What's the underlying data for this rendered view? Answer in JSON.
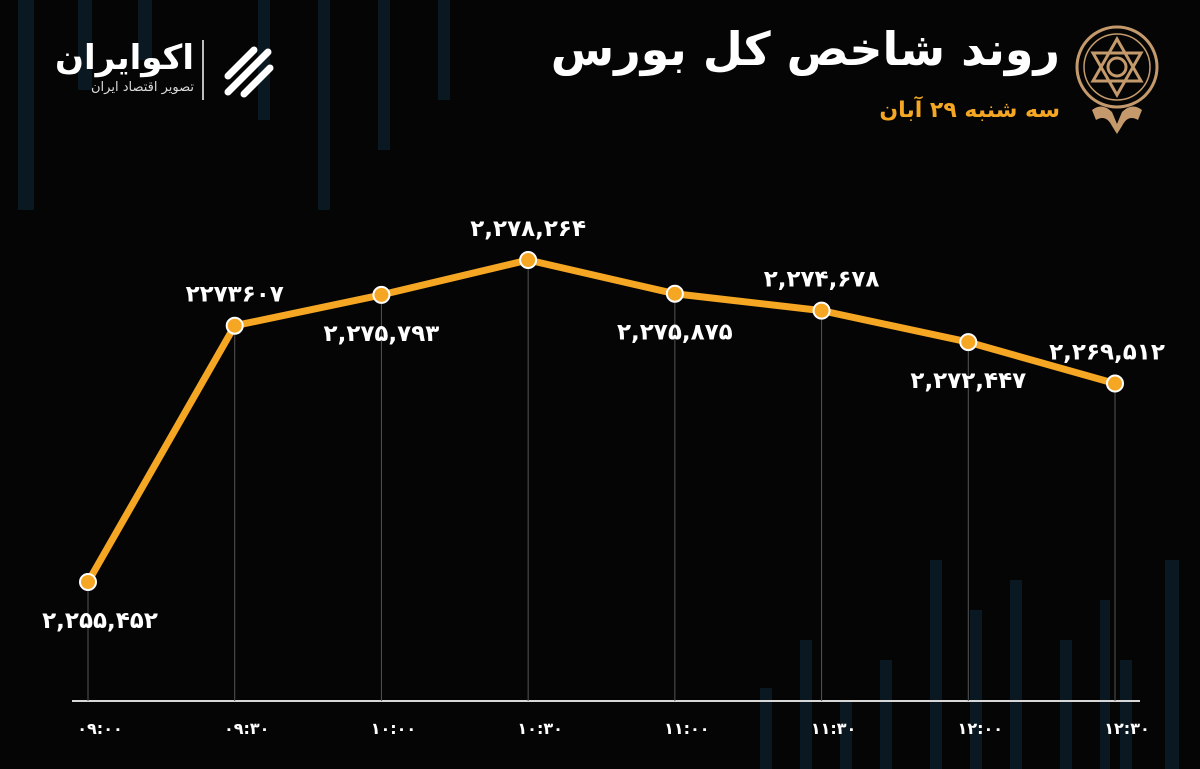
{
  "header": {
    "title": "روند شاخص کل بورس",
    "subtitle": "سه شنبه ۲۹ آبان"
  },
  "brand": {
    "name": "اکوایران",
    "tagline": "تصویر اقتصاد ایران"
  },
  "colors": {
    "line": "#f5a623",
    "subtitle": "#f5a623",
    "background": "#050505",
    "gridline": "#555555",
    "emblem": "#c49a6c"
  },
  "icons": {
    "emblem": "stock-exchange-emblem-icon",
    "brand": "ecoiran-logo-icon"
  },
  "chart_data": {
    "type": "line",
    "categories": [
      "۰۹:۰۰",
      "۰۹:۳۰",
      "۱۰:۰۰",
      "۱۰:۳۰",
      "۱۱:۰۰",
      "۱۱:۳۰",
      "۱۲:۰۰",
      "۱۲:۳۰"
    ],
    "values": [
      2255452,
      2273607,
      2275793,
      2278264,
      2275875,
      2274678,
      2272447,
      2269512
    ],
    "data_labels": [
      "۲,۲۵۵,۴۵۲",
      "۲۲۷۳۶۰۷",
      "۲,۲۷۵,۷۹۳",
      "۲,۲۷۸,۲۶۴",
      "۲,۲۷۵,۸۷۵",
      "۲,۲۷۴,۶۷۸",
      "۲,۲۷۲,۴۴۷",
      "۲,۲۶۹,۵۱۲"
    ],
    "label_positions": [
      "below",
      "above",
      "below",
      "above",
      "below",
      "above",
      "below",
      "above"
    ],
    "ylim": [
      2252000,
      2281000
    ],
    "grid": "vertical",
    "legend": "none"
  }
}
